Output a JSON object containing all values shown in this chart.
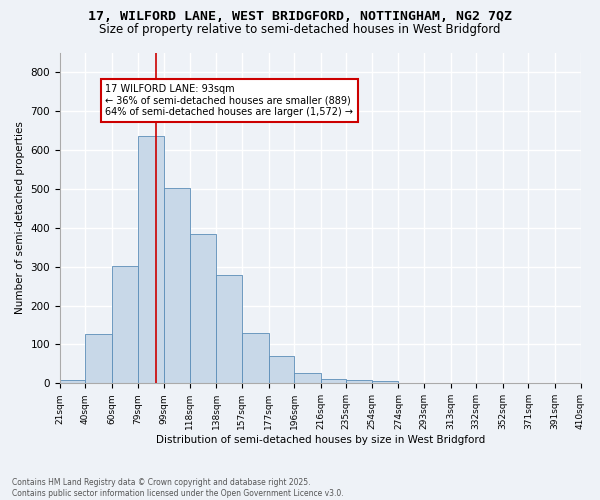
{
  "title_line1": "17, WILFORD LANE, WEST BRIDGFORD, NOTTINGHAM, NG2 7QZ",
  "title_line2": "Size of property relative to semi-detached houses in West Bridgford",
  "xlabel": "Distribution of semi-detached houses by size in West Bridgford",
  "ylabel": "Number of semi-detached properties",
  "footnote_line1": "Contains HM Land Registry data © Crown copyright and database right 2025.",
  "footnote_line2": "Contains public sector information licensed under the Open Government Licence v3.0.",
  "bin_labels": [
    "21sqm",
    "40sqm",
    "60sqm",
    "79sqm",
    "99sqm",
    "118sqm",
    "138sqm",
    "157sqm",
    "177sqm",
    "196sqm",
    "216sqm",
    "235sqm",
    "254sqm",
    "274sqm",
    "293sqm",
    "313sqm",
    "332sqm",
    "352sqm",
    "371sqm",
    "391sqm",
    "410sqm"
  ],
  "bar_heights": [
    8,
    128,
    302,
    635,
    502,
    383,
    279,
    130,
    70,
    26,
    11,
    8,
    5,
    0,
    0,
    0,
    0,
    0,
    0,
    0
  ],
  "bin_edges": [
    21,
    40,
    60,
    79,
    99,
    118,
    138,
    157,
    177,
    196,
    216,
    235,
    254,
    274,
    293,
    313,
    332,
    352,
    371,
    391,
    410
  ],
  "bar_color": "#c8d8e8",
  "bar_edge_color": "#5b8db8",
  "property_size": 93,
  "vline_color": "#cc0000",
  "annotation_text_line1": "17 WILFORD LANE: 93sqm",
  "annotation_text_line2": "← 36% of semi-detached houses are smaller (889)",
  "annotation_text_line3": "64% of semi-detached houses are larger (1,572) →",
  "annotation_box_color": "#cc0000",
  "annotation_bg_color": "#ffffff",
  "ylim": [
    0,
    850
  ],
  "yticks": [
    0,
    100,
    200,
    300,
    400,
    500,
    600,
    700,
    800
  ],
  "background_color": "#eef2f7",
  "grid_color": "#ffffff",
  "title_fontsize": 9.5,
  "subtitle_fontsize": 8.5
}
